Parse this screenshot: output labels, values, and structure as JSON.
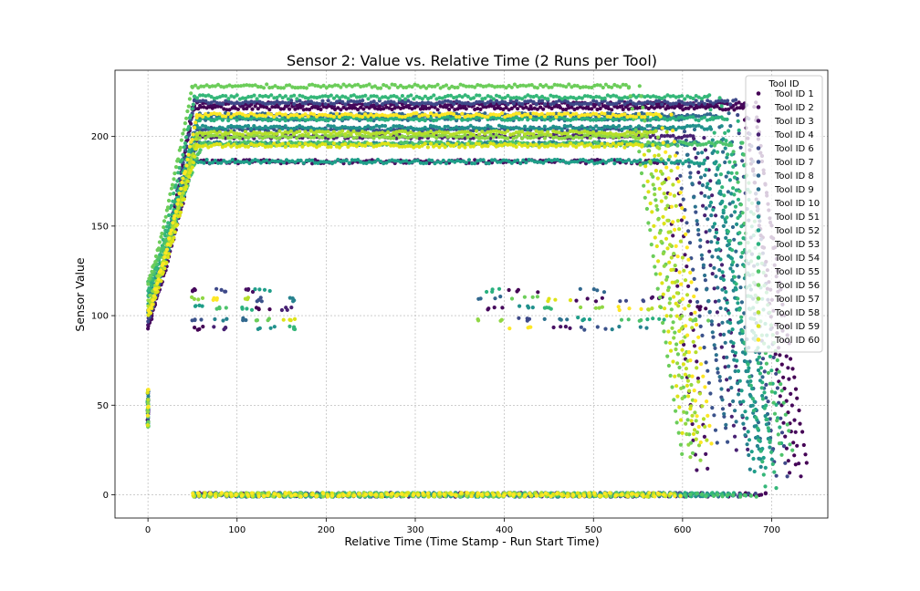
{
  "chart_data": {
    "type": "scatter",
    "title": "Sensor 2: Value vs. Relative Time (2 Runs per Tool)",
    "xlabel": "Relative Time (Time Stamp - Run Start Time)",
    "ylabel": "Sensor Value",
    "xlim": [
      -37,
      763
    ],
    "ylim": [
      -13,
      237
    ],
    "xticks": [
      0,
      100,
      200,
      300,
      400,
      500,
      600,
      700
    ],
    "yticks": [
      0,
      50,
      100,
      150,
      200
    ],
    "grid": true,
    "legend": {
      "title": "Tool ID",
      "placement": "top-right"
    },
    "colormap": "viridis",
    "series": [
      {
        "name": "Tool ID 1",
        "color": "#440154",
        "plateau": 216,
        "start_value": 95,
        "ramp_end": 50,
        "drop_start": 668,
        "drop_end": 728,
        "end_value": 15,
        "low_plateau": 0
      },
      {
        "name": "Tool ID 2",
        "color": "#46085c",
        "plateau": 218,
        "start_value": 93,
        "ramp_end": 52,
        "drop_start": 670,
        "drop_end": 722,
        "end_value": 5,
        "low_plateau": 0
      },
      {
        "name": "Tool ID 3",
        "color": "#471063",
        "plateau": 186,
        "start_value": 96,
        "ramp_end": 50,
        "drop_start": 580,
        "drop_end": 617,
        "end_value": 10,
        "low_plateau": 0
      },
      {
        "name": "Tool ID 4",
        "color": "#482173",
        "plateau": 200,
        "start_value": 100,
        "ramp_end": 55,
        "drop_start": 612,
        "drop_end": 662,
        "end_value": 20,
        "low_plateau": 0
      },
      {
        "name": "Tool ID 6",
        "color": "#3e4989",
        "plateau": 219,
        "start_value": 98,
        "ramp_end": 52,
        "drop_start": 660,
        "drop_end": 705,
        "end_value": 10,
        "low_plateau": 0
      },
      {
        "name": "Tool ID 7",
        "color": "#3b528b",
        "plateau": 204,
        "start_value": 99,
        "ramp_end": 55,
        "drop_start": 590,
        "drop_end": 640,
        "end_value": 25,
        "low_plateau": 0
      },
      {
        "name": "Tool ID 8",
        "color": "#31688e",
        "plateau": 212,
        "start_value": 102,
        "ramp_end": 55,
        "drop_start": 640,
        "drop_end": 690,
        "end_value": 20,
        "low_plateau": 0
      },
      {
        "name": "Tool ID 9",
        "color": "#2c728e",
        "plateau": 210,
        "start_value": 101,
        "ramp_end": 55,
        "drop_start": 600,
        "drop_end": 650,
        "end_value": 35,
        "low_plateau": 0
      },
      {
        "name": "Tool ID 10",
        "color": "#26828e",
        "plateau": 196,
        "start_value": 103,
        "ramp_end": 55,
        "drop_start": 620,
        "drop_end": 676,
        "end_value": 15,
        "low_plateau": 0
      },
      {
        "name": "Tool ID 51",
        "color": "#21918c",
        "plateau": 205,
        "start_value": 110,
        "ramp_end": 55,
        "drop_start": 632,
        "drop_end": 688,
        "end_value": 20,
        "low_plateau": 0
      },
      {
        "name": "Tool ID 52",
        "color": "#1f9e89",
        "plateau": 186,
        "start_value": 105,
        "ramp_end": 50,
        "drop_start": 625,
        "drop_end": 682,
        "end_value": 10,
        "low_plateau": 0
      },
      {
        "name": "Tool ID 53",
        "color": "#2ab07f",
        "plateau": 210,
        "start_value": 115,
        "ramp_end": 55,
        "drop_start": 650,
        "drop_end": 700,
        "end_value": 25,
        "low_plateau": 0
      },
      {
        "name": "Tool ID 54",
        "color": "#35b779",
        "plateau": 222,
        "start_value": 112,
        "ramp_end": 52,
        "drop_start": 630,
        "drop_end": 693,
        "end_value": 5,
        "low_plateau": 0
      },
      {
        "name": "Tool ID 55",
        "color": "#4ec36b",
        "plateau": 196,
        "start_value": 120,
        "ramp_end": 60,
        "drop_start": 655,
        "drop_end": 712,
        "end_value": 20,
        "low_plateau": 0
      },
      {
        "name": "Tool ID 56",
        "color": "#6ccd5a",
        "plateau": 228,
        "start_value": 118,
        "ramp_end": 50,
        "drop_start": 540,
        "drop_end": 600,
        "end_value": 20,
        "low_plateau": 0
      },
      {
        "name": "Tool ID 57",
        "color": "#8fd744",
        "plateau": 200,
        "start_value": 108,
        "ramp_end": 55,
        "drop_start": 560,
        "drop_end": 610,
        "end_value": 15,
        "low_plateau": 0
      },
      {
        "name": "Tool ID 58",
        "color": "#b5de2b",
        "plateau": 202,
        "start_value": 104,
        "ramp_end": 55,
        "drop_start": 570,
        "drop_end": 615,
        "end_value": 30,
        "low_plateau": 0
      },
      {
        "name": "Tool ID 59",
        "color": "#dde318",
        "plateau": 195,
        "start_value": 100,
        "ramp_end": 55,
        "drop_start": 555,
        "drop_end": 600,
        "end_value": 35,
        "low_plateau": 0
      },
      {
        "name": "Tool ID 60",
        "color": "#fde725",
        "plateau": 212,
        "start_value": 102,
        "ramp_end": 55,
        "drop_start": 575,
        "drop_end": 620,
        "end_value": 30,
        "low_plateau": 0
      }
    ],
    "clusters": [
      {
        "x_range": [
          48,
          62
        ],
        "y_values": [
          93,
          98,
          105,
          110,
          114
        ]
      },
      {
        "x_range": [
          73,
          92
        ],
        "y_values": [
          93,
          98,
          104,
          109,
          114
        ]
      },
      {
        "x_range": [
          105,
          118
        ],
        "y_values": [
          98,
          104,
          110,
          114
        ]
      },
      {
        "x_range": [
          120,
          145
        ],
        "y_values": [
          93,
          98,
          104,
          109,
          114
        ]
      },
      {
        "x_range": [
          150,
          165
        ],
        "y_values": [
          93,
          98,
          104,
          109
        ]
      },
      {
        "x_range": [
          370,
          398
        ],
        "y_values": [
          98,
          104,
          110,
          114
        ]
      },
      {
        "x_range": [
          405,
          440
        ],
        "y_values": [
          93,
          98,
          105,
          110,
          114
        ]
      },
      {
        "x_range": [
          445,
          475
        ],
        "y_values": [
          93,
          98,
          104,
          109
        ]
      },
      {
        "x_range": [
          480,
          515
        ],
        "y_values": [
          93,
          98,
          104,
          109,
          114
        ]
      },
      {
        "x_range": [
          520,
          560
        ],
        "y_values": [
          93,
          98,
          104,
          109
        ]
      },
      {
        "x_range": [
          560,
          580
        ],
        "y_values": [
          98,
          104,
          110
        ]
      },
      {
        "x_range": [
          610,
          630
        ],
        "y_values": [
          98,
          104
        ]
      }
    ],
    "initial_readings": {
      "x": 0,
      "y_range": [
        37,
        59
      ]
    }
  }
}
